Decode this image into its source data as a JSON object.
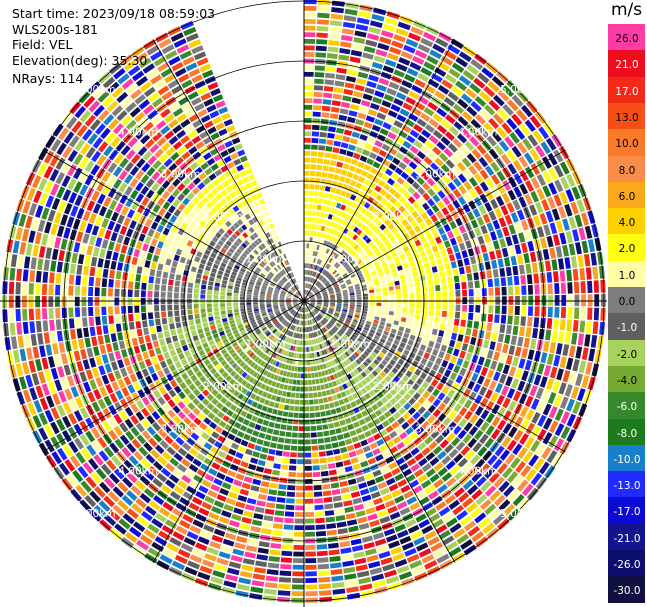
{
  "header": {
    "start_time": "Start time: 2023/09/18 08:59:03",
    "instrument": "WLS200s-181",
    "field": "Field: VEL",
    "elevation": "Elevation(deg): 35.30",
    "nrays": "NRays: 114"
  },
  "colorbar": {
    "unit": "m/s",
    "labels": [
      "26.0",
      "21.0",
      "17.0",
      "13.0",
      "10.0",
      "8.0",
      "6.0",
      "4.0",
      "2.0",
      "1.0",
      "0.0",
      "-1.0",
      "-2.0",
      "-4.0",
      "-6.0",
      "-8.0",
      "-10.0",
      "-13.0",
      "-17.0",
      "-21.0",
      "-26.0",
      "-30.0"
    ],
    "colors": [
      "#ff3ca6",
      "#ee0d1e",
      "#f22a17",
      "#f64e17",
      "#fa7a2a",
      "#fb8c4a",
      "#f9a919",
      "#ffd000",
      "#ffff14",
      "#ffffa8",
      "#7d7d7d",
      "#5f5f5f",
      "#a7d25b",
      "#77aa33",
      "#36882c",
      "#1d7a1d",
      "#1a7fc9",
      "#1e2aff",
      "#0b0bd4",
      "#14148f",
      "#0d0d6b",
      "#101040"
    ]
  },
  "chart_data": {
    "type": "ppi",
    "field": "VEL",
    "units": "m/s",
    "elevation_deg": 35.3,
    "nrays": 114,
    "ring_labels_km": [
      "1.00km",
      "2.00km",
      "3.00km",
      "4.00km",
      "5.00km"
    ],
    "gap_azimuth_deg": [
      338,
      360
    ],
    "velocity_layers": [
      {
        "range_km": [
          0.0,
          0.6
        ],
        "north": 0.5,
        "east": -0.5,
        "south": -1.0,
        "west": 0.5
      },
      {
        "range_km": [
          0.6,
          1.0
        ],
        "north": 1.5,
        "east": 0.3,
        "south": -2.0,
        "west": 0.0
      },
      {
        "range_km": [
          1.0,
          1.8
        ],
        "north": 3.0,
        "east": 2.0,
        "south": -4.0,
        "west": -1.5
      },
      {
        "range_km": [
          1.8,
          2.5
        ],
        "north": 5.0,
        "east": 3.0,
        "south": -6.0,
        "west": 0.0
      },
      {
        "range_km": [
          2.5,
          5.5
        ],
        "noise": "random"
      }
    ]
  }
}
